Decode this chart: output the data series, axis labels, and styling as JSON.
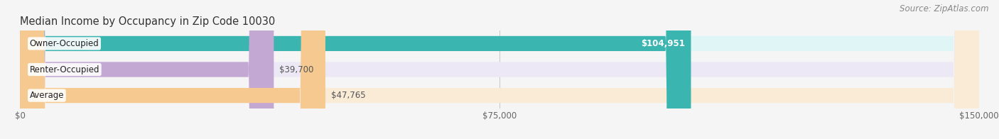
{
  "title": "Median Income by Occupancy in Zip Code 10030",
  "source": "Source: ZipAtlas.com",
  "categories": [
    "Owner-Occupied",
    "Renter-Occupied",
    "Average"
  ],
  "values": [
    104951,
    39700,
    47765
  ],
  "bar_colors": [
    "#3ab5b0",
    "#c4a8d4",
    "#f5c990"
  ],
  "bar_bg_colors": [
    "#e0f5f5",
    "#ede8f5",
    "#faebd7"
  ],
  "label_texts": [
    "$104,951",
    "$39,700",
    "$47,765"
  ],
  "xlim": [
    0,
    150000
  ],
  "xticks": [
    0,
    75000,
    150000
  ],
  "xtick_labels": [
    "$0",
    "$75,000",
    "$150,000"
  ],
  "figsize": [
    14.06,
    1.96
  ],
  "dpi": 100,
  "bar_height": 0.58,
  "title_fontsize": 10.5,
  "label_fontsize": 8.5,
  "tick_fontsize": 8.5,
  "source_fontsize": 8.5,
  "label_color_inside": "#ffffff",
  "label_color_outside": "#555555",
  "grid_color": "#cccccc",
  "bg_color": "#f5f5f5"
}
